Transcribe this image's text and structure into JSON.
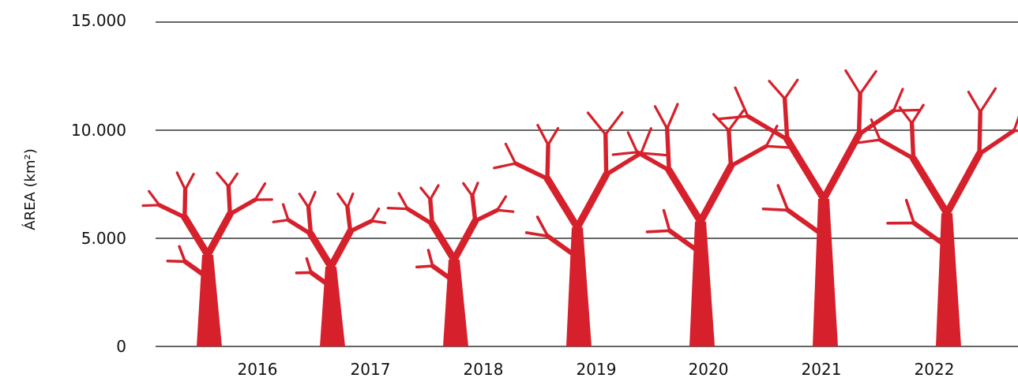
{
  "chart_data": {
    "type": "bar",
    "categories": [
      "2016",
      "2017",
      "2018",
      "2019",
      "2020",
      "2021",
      "2022"
    ],
    "values": [
      7700,
      6700,
      7300,
      10000,
      10500,
      12300,
      11200
    ],
    "ylabel": "ÁREA (km²)",
    "ylim": [
      0,
      15000
    ],
    "yticks": [
      0,
      5000,
      10000,
      15000
    ],
    "ytick_labels": [
      "0",
      "5.000",
      "10.000",
      "15.000"
    ],
    "grid": true,
    "bar_style": "tree pictograms",
    "bar_color": "#d6202b",
    "grid_color": "#333333"
  }
}
